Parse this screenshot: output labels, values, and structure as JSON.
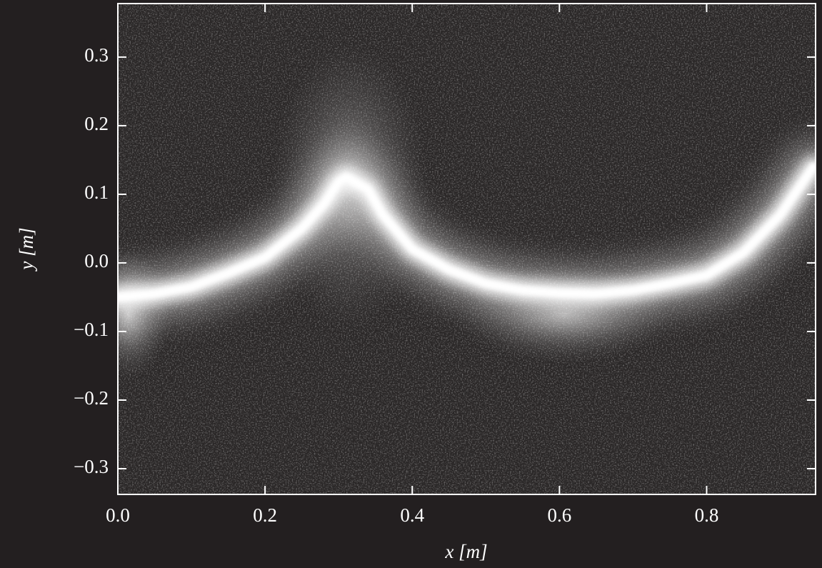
{
  "chart_data": {
    "type": "line",
    "x_label": "x [m]",
    "y_label": "y [m]",
    "x": [
      0,
      0.05,
      0.1,
      0.15,
      0.2,
      0.25,
      0.28,
      0.3,
      0.31,
      0.34,
      0.36,
      0.4,
      0.45,
      0.5,
      0.55,
      0.6,
      0.65,
      0.7,
      0.75,
      0.8,
      0.85,
      0.9,
      0.945
    ],
    "series": [
      {
        "color": "#ffffff",
        "values": [
          -0.05,
          -0.045,
          -0.035,
          -0.015,
          0.008,
          0.05,
          0.086,
          0.118,
          0.125,
          0.107,
          0.07,
          0.02,
          -0.01,
          -0.03,
          -0.04,
          -0.044,
          -0.045,
          -0.04,
          -0.03,
          -0.018,
          0.015,
          0.07,
          0.14
        ]
      }
    ],
    "xlim": [
      0,
      0.948
    ],
    "ylim": [
      -0.3375,
      0.378
    ],
    "xticks": [
      {
        "value": 0,
        "label": "0.0"
      },
      0.2,
      0.4,
      0.6,
      0.8
    ],
    "yticks": [
      {
        "value": 0.3,
        "label": "0.3"
      },
      {
        "value": 0.2,
        "label": "0.2"
      },
      {
        "value": 0.1,
        "label": "0.1"
      },
      {
        "value": 0,
        "label": "0.0"
      },
      {
        "value": -0.1,
        "label": "−0.1"
      },
      {
        "value": -0.2,
        "label": "−0.2"
      },
      {
        "value": -0.3,
        "label": "−0.3"
      }
    ]
  }
}
